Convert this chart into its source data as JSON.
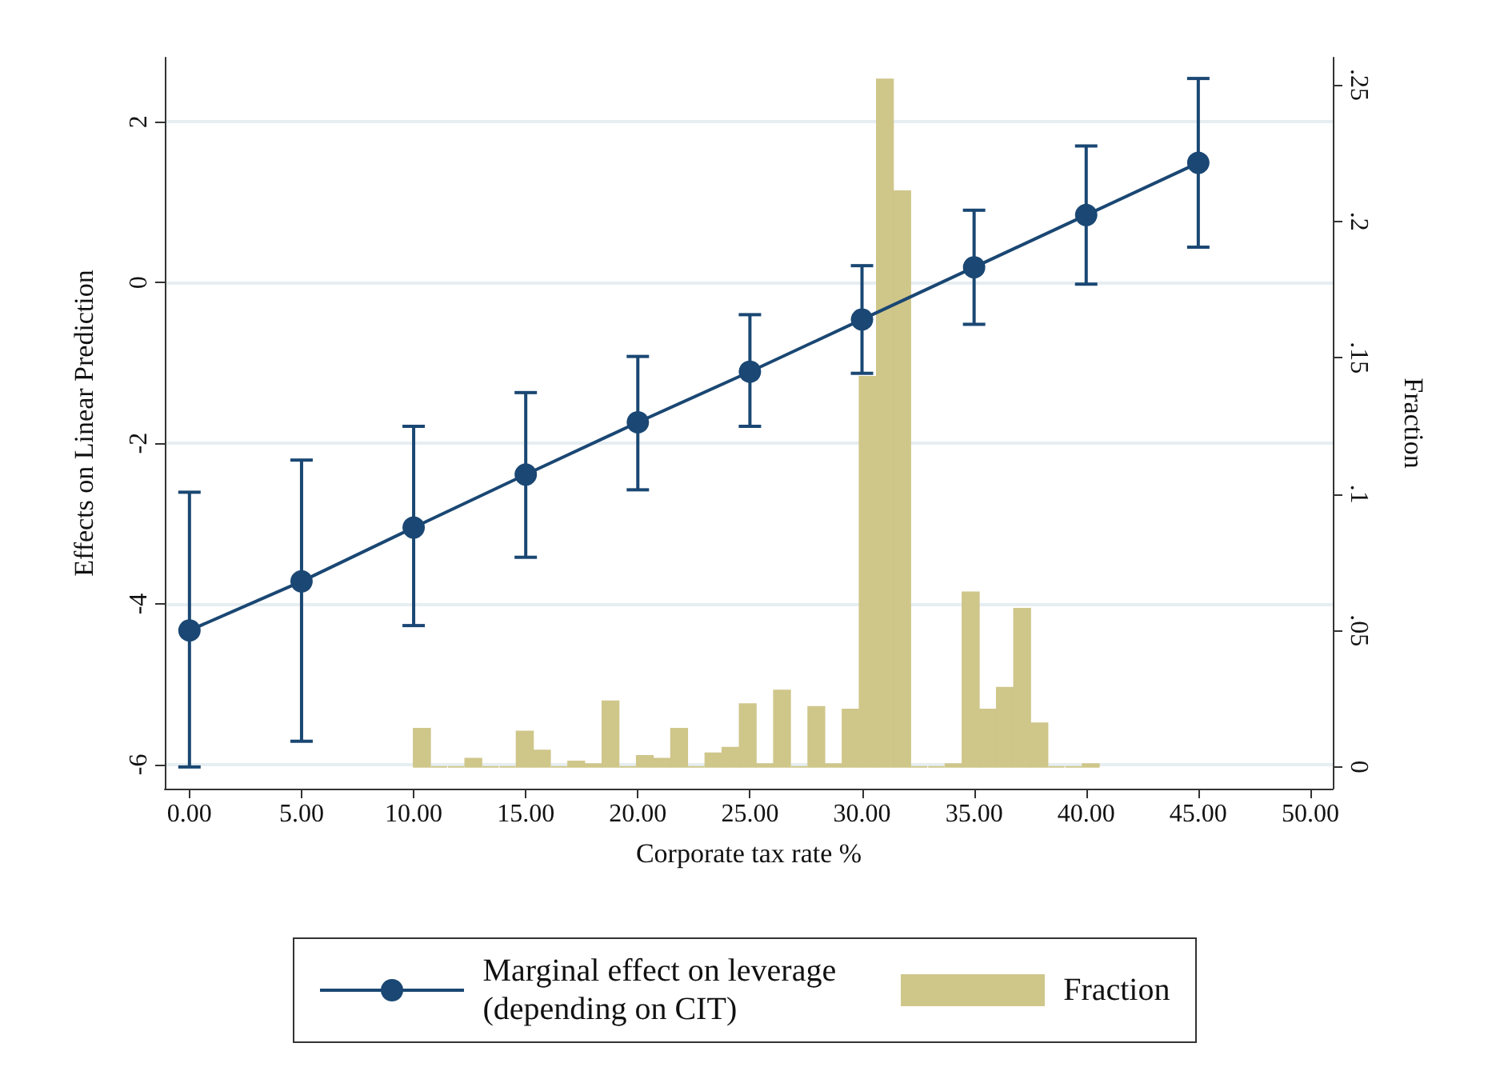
{
  "chart_data": {
    "type": "line",
    "xlabel": "Corporate tax rate %",
    "ylabel": "Effects on Linear Prediction",
    "y2label": "Fraction",
    "x": [
      0,
      5,
      10,
      15,
      20,
      25,
      30,
      35,
      40,
      45
    ],
    "series": [
      {
        "name": "Marginal effect on leverage\n(depending on CIT)",
        "color": "#1a4773",
        "values": [
          -4.33,
          -3.72,
          -3.05,
          -2.39,
          -1.74,
          -1.11,
          -0.46,
          0.19,
          0.84,
          1.49
        ],
        "errors": [
          [
            -6.03,
            -2.61
          ],
          [
            -5.71,
            -2.21
          ],
          [
            -4.27,
            -1.79
          ],
          [
            -3.42,
            -1.37
          ],
          [
            -2.58,
            -0.92
          ],
          [
            -1.79,
            -0.4
          ],
          [
            -1.13,
            0.21
          ],
          [
            -0.52,
            0.9
          ],
          [
            -0.02,
            1.7
          ],
          [
            0.44,
            2.54
          ]
        ]
      },
      {
        "name": "Fraction",
        "type": "histogram",
        "axis": "y2",
        "color": "#cfc68a",
        "bins": [
          10,
          10.77,
          11.53,
          12.3,
          13.06,
          13.83,
          14.59,
          15.36,
          16.12,
          16.89,
          17.65,
          18.42,
          19.18,
          19.95,
          20.71,
          21.48,
          22.24,
          23.01,
          23.77,
          24.54,
          25.3,
          26.07,
          26.83,
          27.6,
          28.36,
          29.13,
          29.89,
          30.66,
          31.42,
          32.19,
          32.95,
          33.72,
          34.48,
          35.25,
          36.01,
          36.78,
          37.54,
          38.31,
          39.07,
          39.84,
          40.6
        ],
        "values": [
          0.014,
          0,
          0,
          0.003,
          0,
          0,
          0.013,
          0.006,
          0,
          0.002,
          0.001,
          0.024,
          0,
          0.004,
          0.003,
          0.014,
          0,
          0.005,
          0.007,
          0.023,
          0.001,
          0.028,
          0,
          0.022,
          0.001,
          0.021,
          0.143,
          0.252,
          0.211,
          0,
          0,
          0.001,
          0.064,
          0.021,
          0.029,
          0.058,
          0.016,
          0,
          0,
          0.001
        ]
      }
    ],
    "xlim": [
      -1.1,
      51
    ],
    "xticks": [
      {
        "value": 0,
        "label": "0.00"
      },
      {
        "value": 5,
        "label": "5.00"
      },
      {
        "value": 10,
        "label": "10.00"
      },
      {
        "value": 15,
        "label": "15.00"
      },
      {
        "value": 20,
        "label": "20.00"
      },
      {
        "value": 25,
        "label": "25.00"
      },
      {
        "value": 30,
        "label": "30.00"
      },
      {
        "value": 35,
        "label": "35.00"
      },
      {
        "value": 40,
        "label": "40.00"
      },
      {
        "value": 45,
        "label": "45.00"
      },
      {
        "value": 50,
        "label": "50.00"
      }
    ],
    "ylim": [
      -6.3,
      2.8
    ],
    "yticks": [
      -6,
      -4,
      -2,
      0,
      2
    ],
    "y2lim": [
      -0.008,
      0.26
    ],
    "y2ticks": [
      0,
      {
        "value": 0.05,
        "label": ".05"
      },
      {
        "value": 0.1,
        "label": ".1"
      },
      {
        "value": 0.15,
        "label": ".15"
      },
      {
        "value": 0.2,
        "label": ".2"
      },
      {
        "value": 0.25,
        "label": ".25"
      }
    ],
    "grid": "y",
    "legend": "bottom",
    "marker": "circle",
    "line_style": "solid"
  }
}
